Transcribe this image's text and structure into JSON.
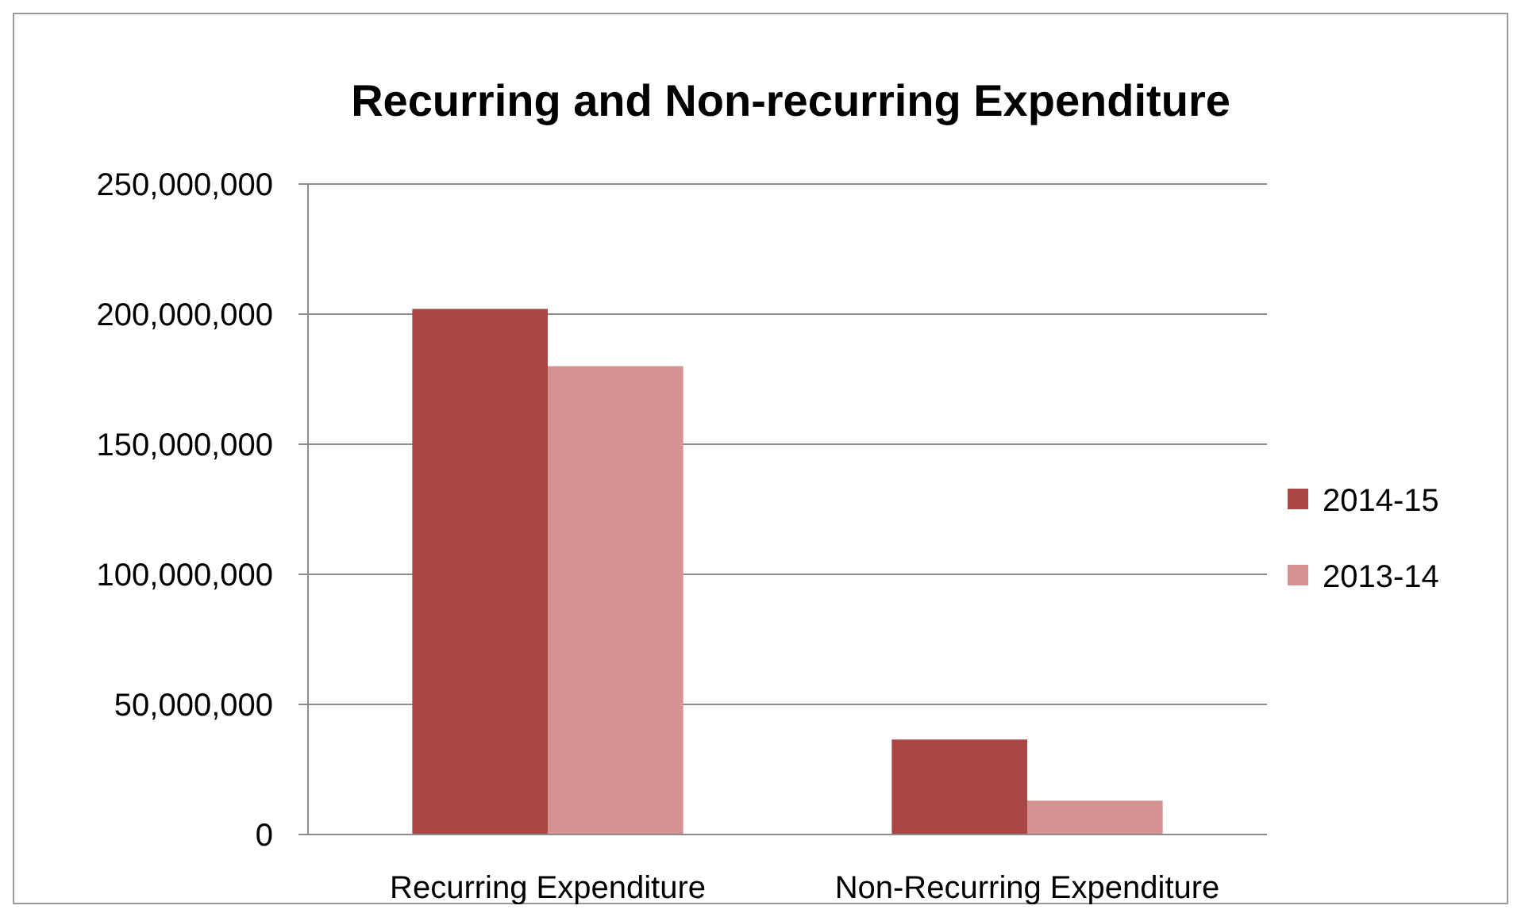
{
  "chart_data": {
    "type": "bar",
    "title": "Recurring and Non-recurring Expenditure",
    "categories": [
      "Recurring Expenditure",
      "Non-Recurring Expenditure"
    ],
    "series": [
      {
        "name": "2014-15",
        "color": "#a94744",
        "values": [
          202000000,
          36500000
        ]
      },
      {
        "name": "2013-14",
        "color": "#d49392",
        "values": [
          180000000,
          13000000
        ]
      }
    ],
    "ylim": [
      0,
      250000000
    ],
    "yticks": [
      {
        "value": 0,
        "label": "0"
      },
      {
        "value": 50000000,
        "label": "50,000,000"
      },
      {
        "value": 100000000,
        "label": "100,000,000"
      },
      {
        "value": 150000000,
        "label": "150,000,000"
      },
      {
        "value": 200000000,
        "label": "200,000,000"
      },
      {
        "value": 250000000,
        "label": "250,000,000"
      }
    ],
    "grid": "y",
    "legend": "right"
  }
}
